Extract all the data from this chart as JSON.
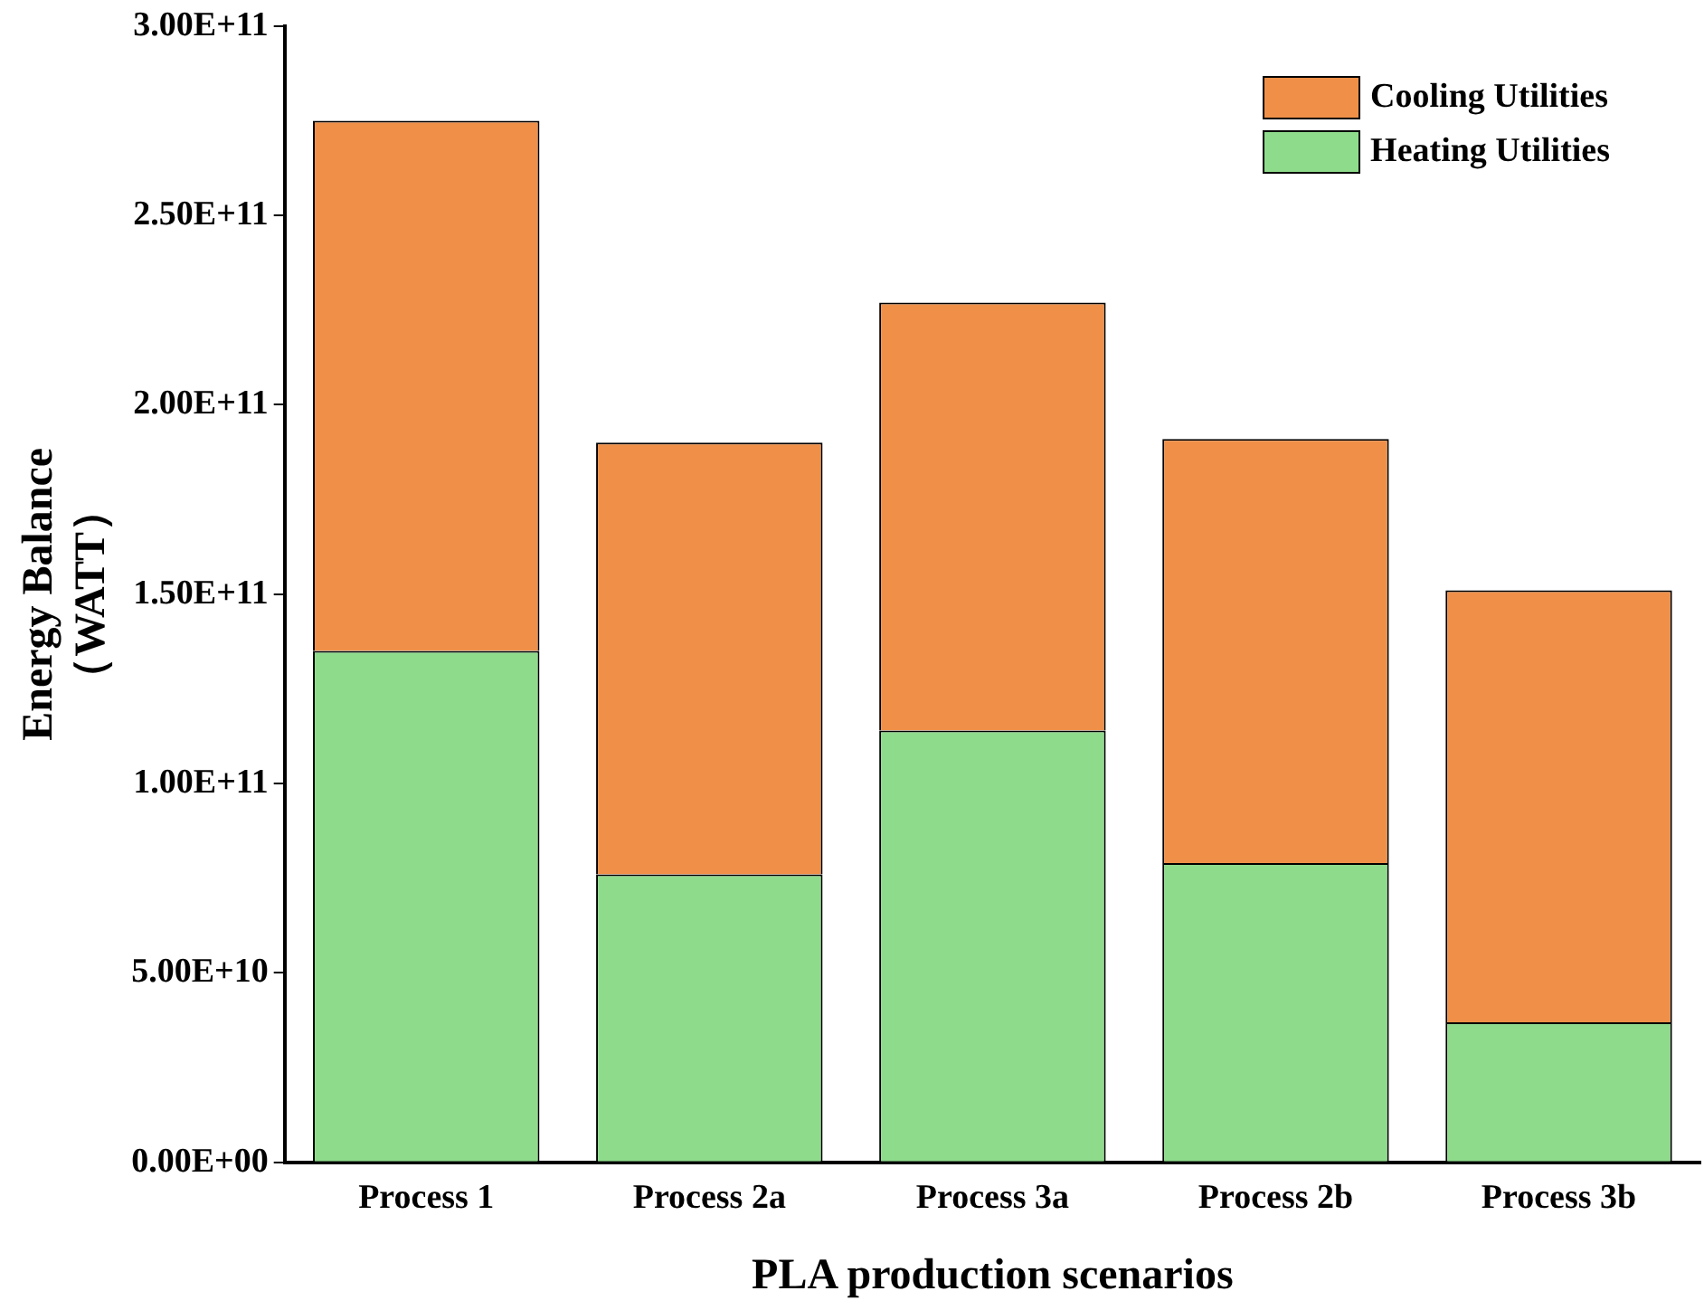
{
  "chart_data": {
    "type": "bar",
    "stacked": true,
    "xlabel": "PLA production scenarios",
    "ylabel": "Energy Balance\n（WATT）",
    "categories": [
      "Process 1",
      "Process 2a",
      "Process 3a",
      "Process 2b",
      "Process 3b"
    ],
    "series": [
      {
        "name": "Heating Utilities",
        "color": "#8fdb8c",
        "values": [
          135000000000,
          76000000000,
          114000000000,
          79000000000,
          37000000000
        ]
      },
      {
        "name": "Cooling Utilities",
        "color": "#f09048",
        "values": [
          140000000000,
          114000000000,
          113000000000,
          112000000000,
          114000000000
        ]
      }
    ],
    "ylim": [
      0,
      300000000000
    ],
    "yticks": [
      {
        "value": 0,
        "label": "0.00E+00"
      },
      {
        "value": 50000000000,
        "label": "5.00E+10"
      },
      {
        "value": 100000000000,
        "label": "1.00E+11"
      },
      {
        "value": 150000000000,
        "label": "1.50E+11"
      },
      {
        "value": 200000000000,
        "label": "2.00E+11"
      },
      {
        "value": 250000000000,
        "label": "2.50E+11"
      },
      {
        "value": 300000000000,
        "label": "3.00E+11"
      }
    ],
    "grid": false,
    "legend": "top right"
  }
}
